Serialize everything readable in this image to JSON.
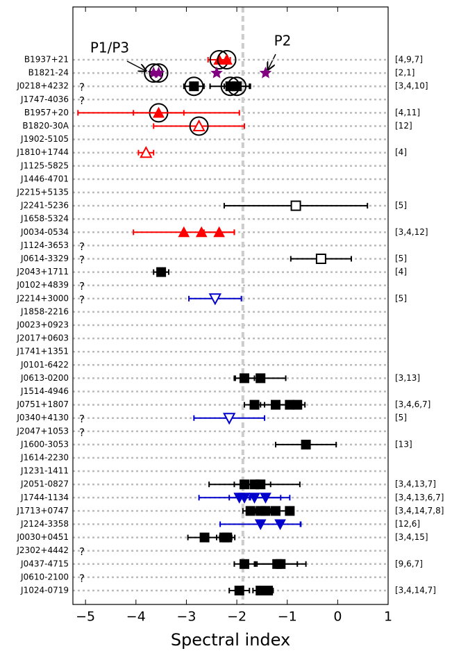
{
  "chart_data": {
    "type": "dot-errorbar",
    "xlabel": "Spectral index",
    "xlim": [
      -5.25,
      1
    ],
    "xticks": [
      {
        "value": -5,
        "label": "−5"
      },
      {
        "value": -4,
        "label": "−4"
      },
      {
        "value": -3,
        "label": "−3"
      },
      {
        "value": -2,
        "label": "−2"
      },
      {
        "value": -1,
        "label": "−1"
      },
      0,
      1
    ],
    "reference_line": -1.88,
    "row_grid": true,
    "annotations": [
      {
        "text": "P1/P3"
      },
      {
        "text": "P2"
      }
    ],
    "rows": [
      {
        "name": "B1937+21",
        "refs": "[4,9,7]",
        "points": [
          {
            "value": -2.35,
            "err": 0.22,
            "marker": "triangle",
            "color": "#ff0000",
            "ring": true
          },
          {
            "value": -2.2,
            "marker": "triangle",
            "color": "#ff0000",
            "ring": true
          }
        ]
      },
      {
        "name": "B1821-24",
        "refs": "[2,1]",
        "points": [
          {
            "value": -3.65,
            "marker": "star",
            "color": "#800080",
            "ring": true
          },
          {
            "value": -3.55,
            "marker": "star",
            "color": "#800080",
            "ring": true
          },
          {
            "value": -2.4,
            "marker": "star",
            "color": "#800080"
          },
          {
            "value": -1.43,
            "marker": "star",
            "color": "#800080"
          }
        ]
      },
      {
        "name": "J0218+4232",
        "flag": "?",
        "refs": "[3,4,10]",
        "points": [
          {
            "value": -2.85,
            "err": 0.2,
            "marker": "square",
            "color": "#000000",
            "ring": true
          },
          {
            "value": -2.13,
            "err": 0.4,
            "marker": "square",
            "color": "#000000",
            "ring": true
          },
          {
            "value": -2.0,
            "err": 0.25,
            "marker": "square",
            "color": "#000000",
            "ring": true
          }
        ]
      },
      {
        "name": "J1747-4036",
        "flag": "?",
        "points": []
      },
      {
        "name": "B1957+20",
        "refs": "[4,11]",
        "points": [
          {
            "value": -3.55,
            "err": 1.6,
            "marker": "triangle",
            "color": "#ff0000",
            "ring": true
          },
          {
            "value": -3.55,
            "err": 0.5,
            "marker": "triangle",
            "color": "#ff0000"
          }
        ]
      },
      {
        "name": "B1820-30A",
        "refs": "[12]",
        "points": [
          {
            "value": -2.75,
            "err": 0.9,
            "marker": "open-triangle",
            "color": "#ff0000",
            "ring": true
          }
        ]
      },
      {
        "name": "J1902-5105",
        "points": []
      },
      {
        "name": "J1810+1744",
        "refs": "[4]",
        "points": [
          {
            "value": -3.8,
            "err": 0.15,
            "marker": "open-triangle",
            "color": "#ff0000"
          }
        ]
      },
      {
        "name": "J1125-5825",
        "points": []
      },
      {
        "name": "J1446-4701",
        "points": []
      },
      {
        "name": "J2215+5135",
        "points": []
      },
      {
        "name": "J2241-5236",
        "refs": "[5]",
        "points": [
          {
            "value": -0.83,
            "err": 1.42,
            "marker": "open-square",
            "color": "#000000"
          }
        ]
      },
      {
        "name": "J1658-5324",
        "points": []
      },
      {
        "name": "J0034-0534",
        "refs": "[3,4,12]",
        "points": [
          {
            "value": -3.05,
            "err": 1.0,
            "marker": "triangle",
            "color": "#ff0000"
          },
          {
            "value": -2.7,
            "marker": "triangle",
            "color": "#ff0000"
          },
          {
            "value": -2.35,
            "err": 0.3,
            "marker": "triangle",
            "color": "#ff0000"
          }
        ]
      },
      {
        "name": "J1124-3653",
        "flag": "?",
        "points": []
      },
      {
        "name": "J0614-3329",
        "flag": "?",
        "refs": "[5]",
        "points": [
          {
            "value": -0.33,
            "err": 0.6,
            "marker": "open-square",
            "color": "#000000"
          }
        ]
      },
      {
        "name": "J2043+1711",
        "refs": "[4]",
        "points": [
          {
            "value": -3.5,
            "err": 0.15,
            "marker": "square",
            "color": "#000000"
          }
        ]
      },
      {
        "name": "J0102+4839",
        "flag": "?",
        "points": []
      },
      {
        "name": "J2214+3000",
        "flag": "?",
        "refs": "[5]",
        "points": [
          {
            "value": -2.43,
            "err": 0.52,
            "marker": "open-down-triangle",
            "color": "#0000cc"
          }
        ]
      },
      {
        "name": "J1858-2216",
        "points": []
      },
      {
        "name": "J0023+0923",
        "points": []
      },
      {
        "name": "J2017+0603",
        "points": []
      },
      {
        "name": "J1741+1351",
        "points": []
      },
      {
        "name": "J0101-6422",
        "points": []
      },
      {
        "name": "J0613-0200",
        "refs": "[3,13]",
        "points": [
          {
            "value": -1.85,
            "err": 0.2,
            "marker": "square",
            "color": "#000000"
          },
          {
            "value": -1.53,
            "err": 0.5,
            "marker": "square",
            "color": "#000000"
          }
        ]
      },
      {
        "name": "J1514-4946",
        "points": []
      },
      {
        "name": "J0751+1807",
        "refs": "[3,4,6,7]",
        "points": [
          {
            "value": -1.65,
            "err": 0.2,
            "marker": "square",
            "color": "#000000"
          },
          {
            "value": -1.23,
            "err": 0.3,
            "marker": "square",
            "color": "#000000"
          },
          {
            "value": -0.95,
            "err": 0.2,
            "marker": "square",
            "color": "#000000"
          },
          {
            "value": -0.8,
            "err": 0.15,
            "marker": "square",
            "color": "#000000"
          }
        ]
      },
      {
        "name": "J0340+4130",
        "flag": "?",
        "refs": "[5]",
        "points": [
          {
            "value": -2.15,
            "err": 0.7,
            "marker": "open-down-triangle",
            "color": "#0000cc"
          }
        ]
      },
      {
        "name": "J2047+1053",
        "flag": "?",
        "points": []
      },
      {
        "name": "J1600-3053",
        "refs": "[13]",
        "points": [
          {
            "value": -0.63,
            "err": 0.6,
            "marker": "square",
            "color": "#000000"
          }
        ]
      },
      {
        "name": "J1614-2230",
        "points": []
      },
      {
        "name": "J1231-1411",
        "points": []
      },
      {
        "name": "J2051-0827",
        "refs": "[3,4,13,7]",
        "points": [
          {
            "value": -1.85,
            "err": 0.2,
            "marker": "square",
            "color": "#000000"
          },
          {
            "value": -1.65,
            "err": 0.9,
            "marker": "square",
            "color": "#000000"
          },
          {
            "value": -1.53,
            "err": 0.2,
            "marker": "square",
            "color": "#000000"
          }
        ]
      },
      {
        "name": "J1744-1134",
        "refs": "[3,4,13,6,7]",
        "points": [
          {
            "value": -1.95,
            "err": 0.2,
            "marker": "down-triangle",
            "color": "#0000cc"
          },
          {
            "value": -1.85,
            "err": 0.9,
            "marker": "down-triangle",
            "color": "#0000cc"
          },
          {
            "value": -1.65,
            "err": 0.2,
            "marker": "down-triangle",
            "color": "#0000cc"
          },
          {
            "value": -1.43,
            "err": 0.3,
            "marker": "down-triangle",
            "color": "#0000cc"
          }
        ]
      },
      {
        "name": "J1713+0747",
        "refs": "[3,4,14,7,8]",
        "points": [
          {
            "value": -1.73,
            "err": 0.15,
            "marker": "square",
            "color": "#000000"
          },
          {
            "value": -1.53,
            "err": 0.2,
            "marker": "square",
            "color": "#000000"
          },
          {
            "value": -1.43,
            "err": 0.2,
            "marker": "square",
            "color": "#000000"
          },
          {
            "value": -1.23,
            "err": 0.2,
            "marker": "square",
            "color": "#000000"
          },
          {
            "value": -0.95,
            "marker": "square",
            "color": "#000000"
          }
        ]
      },
      {
        "name": "J2124-3358",
        "refs": "[12,6]",
        "points": [
          {
            "value": -1.53,
            "err": 0.8,
            "marker": "down-triangle",
            "color": "#0000cc"
          },
          {
            "value": -1.14,
            "err": 0.4,
            "marker": "down-triangle",
            "color": "#0000cc"
          }
        ]
      },
      {
        "name": "J0030+0451",
        "refs": "[3,4,15]",
        "points": [
          {
            "value": -2.64,
            "err": 0.33,
            "marker": "square",
            "color": "#000000"
          },
          {
            "value": -2.25,
            "err": 0.15,
            "marker": "square",
            "color": "#000000"
          },
          {
            "value": -2.19,
            "err": 0.15,
            "marker": "square",
            "color": "#000000"
          }
        ]
      },
      {
        "name": "J2302+4442",
        "flag": "?",
        "points": []
      },
      {
        "name": "J0437-4715",
        "refs": "[9,6,7]",
        "points": [
          {
            "value": -1.85,
            "err": 0.2,
            "marker": "square",
            "color": "#000000"
          },
          {
            "value": -1.2,
            "err": 0.4,
            "marker": "square",
            "color": "#000000"
          },
          {
            "value": -1.13,
            "err": 0.5,
            "marker": "square",
            "color": "#000000"
          }
        ]
      },
      {
        "name": "J0610-2100",
        "flag": "?",
        "points": []
      },
      {
        "name": "J1024-0719",
        "refs": "[3,4,14,7]",
        "points": [
          {
            "value": -1.95,
            "err": 0.2,
            "marker": "square",
            "color": "#000000"
          },
          {
            "value": -1.53,
            "err": 0.15,
            "marker": "square",
            "color": "#000000"
          },
          {
            "value": -1.43,
            "err": 0.1,
            "marker": "square",
            "color": "#000000"
          },
          {
            "value": -1.38,
            "err": 0.1,
            "marker": "square",
            "color": "#000000"
          }
        ]
      }
    ]
  }
}
